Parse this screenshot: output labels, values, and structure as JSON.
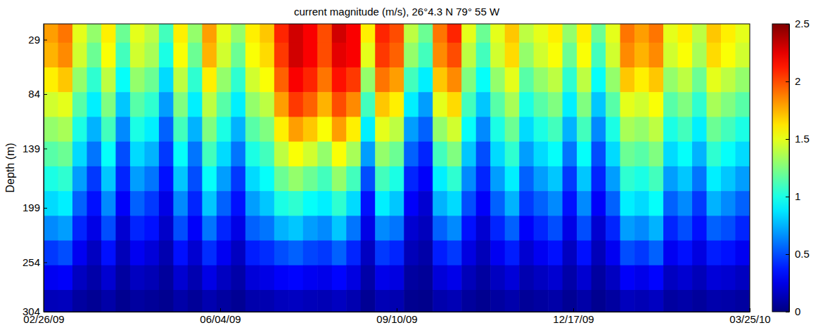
{
  "chart_data": {
    "type": "heatmap",
    "title": "current magnitude (m/s), 26°4.3 N 79° 55 W",
    "y_label": "Depth (m)",
    "xlim": [
      "2009-02-26",
      "2010-03-25"
    ],
    "xticks": [
      {
        "value": "2009-02-26",
        "label": "02/26/09"
      },
      {
        "value": "2009-06-04",
        "label": "06/04/09"
      },
      {
        "value": "2009-09-10",
        "label": "09/10/09"
      },
      {
        "value": "2009-12-17",
        "label": "12/17/09"
      },
      {
        "value": "2010-03-25",
        "label": "03/25/10"
      }
    ],
    "ylim": [
      13,
      304
    ],
    "yticks": [
      29,
      84,
      139,
      199,
      254,
      304
    ],
    "x": [
      "2009-02-26",
      "2009-03-06",
      "2009-03-14",
      "2009-03-22",
      "2009-03-30",
      "2009-04-07",
      "2009-04-15",
      "2009-04-23",
      "2009-05-01",
      "2009-05-09",
      "2009-05-17",
      "2009-05-25",
      "2009-06-02",
      "2009-06-10",
      "2009-06-18",
      "2009-06-26",
      "2009-07-04",
      "2009-07-12",
      "2009-07-20",
      "2009-07-28",
      "2009-08-05",
      "2009-08-13",
      "2009-08-21",
      "2009-08-29",
      "2009-09-06",
      "2009-09-14",
      "2009-09-22",
      "2009-09-30",
      "2009-10-08",
      "2009-10-16",
      "2009-10-24",
      "2009-11-01",
      "2009-11-09",
      "2009-11-17",
      "2009-11-25",
      "2009-12-03",
      "2009-12-11",
      "2009-12-19",
      "2009-12-27",
      "2010-01-04",
      "2010-01-12",
      "2010-01-20",
      "2010-01-28",
      "2010-02-05",
      "2010-02-13",
      "2010-02-21",
      "2010-03-01",
      "2010-03-09",
      "2010-03-17",
      "2010-03-25"
    ],
    "y": [
      13,
      32,
      57,
      82,
      107,
      132,
      157,
      182,
      207,
      232,
      257,
      282,
      304
    ],
    "cells": [
      [
        1.8,
        1.9,
        1.5,
        1.3,
        1.6,
        1.2,
        1.5,
        1.4,
        1.1,
        1.6,
        1.3,
        1.8,
        1.5,
        1.3,
        1.6,
        1.7,
        2.1,
        2.3,
        2.2,
        2.0,
        2.3,
        2.2,
        1.6,
        2.1,
        2.0,
        1.4,
        1.2,
        1.9,
        2.1,
        1.5,
        1.2,
        1.5,
        1.7,
        1.4,
        1.5,
        1.6,
        1.3,
        1.6,
        1.2,
        1.5,
        1.9,
        1.8,
        1.9,
        1.5,
        1.6,
        1.4,
        1.7,
        1.6,
        1.5
      ],
      [
        1.75,
        1.85,
        1.45,
        1.2,
        1.55,
        1.1,
        1.45,
        1.35,
        1.0,
        1.55,
        1.2,
        1.75,
        1.45,
        1.2,
        1.55,
        1.65,
        2.05,
        2.3,
        2.2,
        2.0,
        2.25,
        2.2,
        1.5,
        2.05,
        1.95,
        1.3,
        1.1,
        1.85,
        2.0,
        1.4,
        1.1,
        1.45,
        1.65,
        1.3,
        1.45,
        1.55,
        1.2,
        1.55,
        1.1,
        1.45,
        1.85,
        1.75,
        1.85,
        1.45,
        1.55,
        1.35,
        1.65,
        1.55,
        1.45
      ],
      [
        1.6,
        1.7,
        1.3,
        1.05,
        1.4,
        0.95,
        1.3,
        1.2,
        0.85,
        1.4,
        1.05,
        1.6,
        1.3,
        1.05,
        1.45,
        1.55,
        1.95,
        2.2,
        2.1,
        1.9,
        2.15,
        2.05,
        1.3,
        1.9,
        1.8,
        1.1,
        0.9,
        1.7,
        1.85,
        1.25,
        0.95,
        1.3,
        1.5,
        1.15,
        1.3,
        1.4,
        1.05,
        1.4,
        0.95,
        1.3,
        1.7,
        1.6,
        1.7,
        1.3,
        1.4,
        1.2,
        1.5,
        1.4,
        1.3
      ],
      [
        1.45,
        1.5,
        1.15,
        0.9,
        1.25,
        0.8,
        1.15,
        1.05,
        0.7,
        1.25,
        0.9,
        1.4,
        1.15,
        0.9,
        1.3,
        1.4,
        1.8,
        2.05,
        1.95,
        1.75,
        2.0,
        1.85,
        1.1,
        1.7,
        1.6,
        0.9,
        0.7,
        1.5,
        1.65,
        1.1,
        0.8,
        1.15,
        1.35,
        1.0,
        1.15,
        1.25,
        0.9,
        1.25,
        0.8,
        1.15,
        1.5,
        1.45,
        1.55,
        1.15,
        1.25,
        1.05,
        1.35,
        1.25,
        1.15
      ],
      [
        1.3,
        1.35,
        1.0,
        0.75,
        1.1,
        0.65,
        1.0,
        0.9,
        0.55,
        1.1,
        0.75,
        1.25,
        1.0,
        0.75,
        1.15,
        1.25,
        1.6,
        1.8,
        1.7,
        1.55,
        1.8,
        1.6,
        0.9,
        1.5,
        1.4,
        0.7,
        0.55,
        1.3,
        1.45,
        0.95,
        0.65,
        1.0,
        1.2,
        0.85,
        1.0,
        1.1,
        0.75,
        1.1,
        0.65,
        1.0,
        1.35,
        1.3,
        1.4,
        1.0,
        1.1,
        0.9,
        1.2,
        1.1,
        1.0
      ],
      [
        1.15,
        1.2,
        0.85,
        0.6,
        0.95,
        0.5,
        0.85,
        0.75,
        0.45,
        0.95,
        0.6,
        1.1,
        0.85,
        0.6,
        1.0,
        1.1,
        1.4,
        1.55,
        1.45,
        1.3,
        1.55,
        1.35,
        0.7,
        1.3,
        1.2,
        0.55,
        0.4,
        1.1,
        1.25,
        0.8,
        0.5,
        0.85,
        1.05,
        0.7,
        0.85,
        0.95,
        0.6,
        0.95,
        0.5,
        0.85,
        1.2,
        1.15,
        1.25,
        0.85,
        0.95,
        0.75,
        1.05,
        0.95,
        0.85
      ],
      [
        1.0,
        1.05,
        0.7,
        0.45,
        0.8,
        0.4,
        0.7,
        0.6,
        0.35,
        0.8,
        0.5,
        0.95,
        0.7,
        0.45,
        0.85,
        0.95,
        1.2,
        1.3,
        1.2,
        1.1,
        1.3,
        1.1,
        0.5,
        1.1,
        1.0,
        0.4,
        0.3,
        0.9,
        1.05,
        0.65,
        0.4,
        0.7,
        0.9,
        0.55,
        0.7,
        0.8,
        0.45,
        0.8,
        0.4,
        0.7,
        1.05,
        1.0,
        1.1,
        0.7,
        0.8,
        0.6,
        0.9,
        0.8,
        0.7
      ],
      [
        0.85,
        0.9,
        0.55,
        0.35,
        0.65,
        0.3,
        0.55,
        0.45,
        0.25,
        0.65,
        0.4,
        0.8,
        0.55,
        0.35,
        0.7,
        0.8,
        1.0,
        1.05,
        0.95,
        0.9,
        1.05,
        0.85,
        0.35,
        0.9,
        0.8,
        0.3,
        0.2,
        0.75,
        0.85,
        0.5,
        0.3,
        0.55,
        0.75,
        0.45,
        0.55,
        0.65,
        0.35,
        0.65,
        0.3,
        0.55,
        0.9,
        0.85,
        0.95,
        0.55,
        0.65,
        0.45,
        0.75,
        0.65,
        0.55
      ],
      [
        0.65,
        0.7,
        0.4,
        0.25,
        0.5,
        0.2,
        0.4,
        0.35,
        0.18,
        0.5,
        0.3,
        0.6,
        0.4,
        0.25,
        0.55,
        0.6,
        0.75,
        0.8,
        0.7,
        0.65,
        0.8,
        0.6,
        0.25,
        0.65,
        0.6,
        0.2,
        0.15,
        0.55,
        0.65,
        0.35,
        0.2,
        0.4,
        0.55,
        0.3,
        0.4,
        0.5,
        0.25,
        0.5,
        0.2,
        0.4,
        0.7,
        0.65,
        0.75,
        0.4,
        0.5,
        0.35,
        0.55,
        0.5,
        0.4
      ],
      [
        0.45,
        0.5,
        0.28,
        0.16,
        0.35,
        0.14,
        0.28,
        0.22,
        0.12,
        0.35,
        0.2,
        0.42,
        0.28,
        0.16,
        0.38,
        0.42,
        0.5,
        0.55,
        0.48,
        0.45,
        0.55,
        0.4,
        0.16,
        0.45,
        0.4,
        0.14,
        0.1,
        0.38,
        0.45,
        0.24,
        0.14,
        0.28,
        0.38,
        0.2,
        0.28,
        0.35,
        0.16,
        0.35,
        0.14,
        0.28,
        0.5,
        0.45,
        0.55,
        0.28,
        0.35,
        0.24,
        0.38,
        0.35,
        0.28
      ],
      [
        0.28,
        0.3,
        0.16,
        0.1,
        0.2,
        0.08,
        0.16,
        0.13,
        0.07,
        0.2,
        0.12,
        0.25,
        0.16,
        0.1,
        0.22,
        0.25,
        0.3,
        0.32,
        0.28,
        0.26,
        0.32,
        0.24,
        0.1,
        0.26,
        0.24,
        0.08,
        0.06,
        0.22,
        0.26,
        0.14,
        0.08,
        0.16,
        0.22,
        0.12,
        0.16,
        0.2,
        0.1,
        0.2,
        0.08,
        0.16,
        0.3,
        0.26,
        0.32,
        0.16,
        0.2,
        0.14,
        0.22,
        0.2,
        0.16
      ],
      [
        0.14,
        0.15,
        0.08,
        0.05,
        0.1,
        0.04,
        0.08,
        0.06,
        0.04,
        0.1,
        0.06,
        0.12,
        0.08,
        0.05,
        0.11,
        0.12,
        0.15,
        0.16,
        0.14,
        0.13,
        0.16,
        0.12,
        0.05,
        0.13,
        0.12,
        0.04,
        0.03,
        0.11,
        0.13,
        0.07,
        0.04,
        0.08,
        0.11,
        0.06,
        0.08,
        0.1,
        0.05,
        0.1,
        0.04,
        0.08,
        0.15,
        0.13,
        0.16,
        0.08,
        0.1,
        0.07,
        0.11,
        0.1,
        0.08
      ]
    ],
    "colorbar": {
      "range": [
        0,
        2.5
      ],
      "ticks": [
        0,
        0.5,
        1,
        1.5,
        2,
        2.5
      ]
    }
  }
}
